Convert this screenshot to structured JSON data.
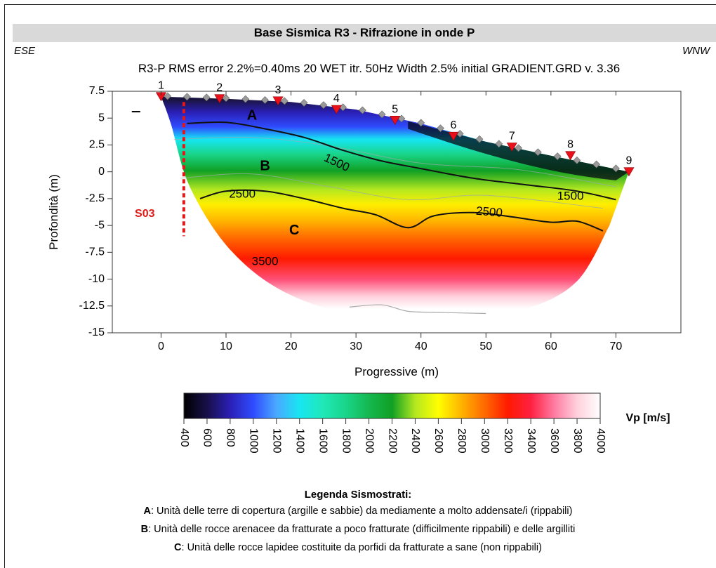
{
  "header": {
    "title": "Base Sismica R3 - Rifrazione in onde P",
    "left_direction": "ESE",
    "right_direction": "WNW",
    "subtitle": "R3-P RMS error 2.2%=0.40ms 20 WET itr. 50Hz Width 2.5% initial GRADIENT.GRD v. 3.36"
  },
  "chart_data": {
    "type": "heatmap",
    "xlabel": "Progressive (m)",
    "ylabel": "Profondità (m)",
    "xlim": [
      -7.5,
      80
    ],
    "ylim": [
      -15,
      7.5
    ],
    "xticks": [
      0,
      10,
      20,
      30,
      40,
      50,
      60,
      70
    ],
    "yticks": [
      7.5,
      5,
      2.5,
      0,
      -2.5,
      -5,
      -7.5,
      -10,
      -12.5,
      -15
    ],
    "surface": [
      [
        0,
        7
      ],
      [
        10,
        6.8
      ],
      [
        20,
        6.5
      ],
      [
        30,
        5.8
      ],
      [
        40,
        4.5
      ],
      [
        50,
        2.8
      ],
      [
        60,
        1.5
      ],
      [
        72,
        0
      ]
    ],
    "geophones": [
      {
        "label": "1",
        "x": 0,
        "y": 7
      },
      {
        "label": "2",
        "x": 9,
        "y": 6.8
      },
      {
        "label": "3",
        "x": 18,
        "y": 6.6
      },
      {
        "label": "4",
        "x": 27,
        "y": 5.8
      },
      {
        "label": "5",
        "x": 36,
        "y": 4.8
      },
      {
        "label": "6",
        "x": 45,
        "y": 3.3
      },
      {
        "label": "7",
        "x": 54,
        "y": 2.3
      },
      {
        "label": "8",
        "x": 63,
        "y": 1.5
      },
      {
        "label": "9",
        "x": 72,
        "y": 0
      }
    ],
    "contours": [
      {
        "label": "1500",
        "points": [
          [
            4,
            4.5
          ],
          [
            10,
            4.6
          ],
          [
            16,
            4
          ],
          [
            22,
            3.2
          ],
          [
            28,
            2
          ],
          [
            34,
            1
          ],
          [
            40,
            0.3
          ],
          [
            48,
            -0.6
          ],
          [
            56,
            -1.2
          ],
          [
            64,
            -1.8
          ],
          [
            70,
            -2.6
          ]
        ]
      },
      {
        "label": "2500",
        "points": [
          [
            6,
            -2.5
          ],
          [
            10,
            -1.8
          ],
          [
            16,
            -1.8
          ],
          [
            22,
            -2.5
          ],
          [
            28,
            -3.4
          ],
          [
            33,
            -4
          ],
          [
            38,
            -5.2
          ],
          [
            42,
            -4.1
          ],
          [
            48,
            -3.8
          ],
          [
            54,
            -4.2
          ],
          [
            60,
            -4.7
          ],
          [
            64,
            -4.6
          ],
          [
            68,
            -5.5
          ]
        ]
      }
    ],
    "contour_labels": [
      {
        "text": "1500",
        "x": 27,
        "y": 0.8,
        "angle": 25
      },
      {
        "text": "1500",
        "x": 63,
        "y": -2.3,
        "angle": 0
      },
      {
        "text": "2500",
        "x": 12.5,
        "y": -2.1,
        "angle": 0
      },
      {
        "text": "2500",
        "x": 50.5,
        "y": -3.8,
        "angle": 5
      },
      {
        "text": "3500",
        "x": 16,
        "y": -8.4,
        "angle": 0
      }
    ],
    "units": [
      {
        "label": "A",
        "x": 14,
        "y": 5.2
      },
      {
        "label": "B",
        "x": 16,
        "y": 0.5
      },
      {
        "label": "C",
        "x": 20.5,
        "y": -5.5
      }
    ],
    "borehole": {
      "label": "S03",
      "x": 3.5,
      "top": 6.5,
      "bottom": -6
    },
    "colorbar": {
      "label": "Vp [m/s]",
      "ticks": [
        "400",
        "600",
        "800",
        "1000",
        "1200",
        "1400",
        "1600",
        "1800",
        "2000",
        "2200",
        "2400",
        "2600",
        "2800",
        "3000",
        "3200",
        "3400",
        "3600",
        "3800",
        "4000"
      ],
      "colors": [
        "#000000",
        "#18104a",
        "#2a1fb5",
        "#2f4cff",
        "#4aa8ff",
        "#18e6f2",
        "#20e8b8",
        "#19d58a",
        "#15b850",
        "#10a024",
        "#b4e820",
        "#ffff00",
        "#ffb300",
        "#ff6a00",
        "#ff1a00",
        "#ff2040",
        "#ff7aa0",
        "#ffd0dc",
        "#ffffff"
      ]
    }
  },
  "legend": {
    "title": "Legenda Sismostrati:",
    "items": [
      {
        "key": "A",
        "text": ": Unità delle terre di copertura (argille e sabbie) da mediamente a molto addensate/i (rippabili)"
      },
      {
        "key": "B",
        "text": ": Unità delle rocce arenacee da fratturate a poco fratturate (difficilmente rippabili) e delle argilliti"
      },
      {
        "key": "C",
        "text": ": Unità delle rocce lapidee costituite da porfidi da fratturate a sane (non rippabili)"
      }
    ]
  }
}
